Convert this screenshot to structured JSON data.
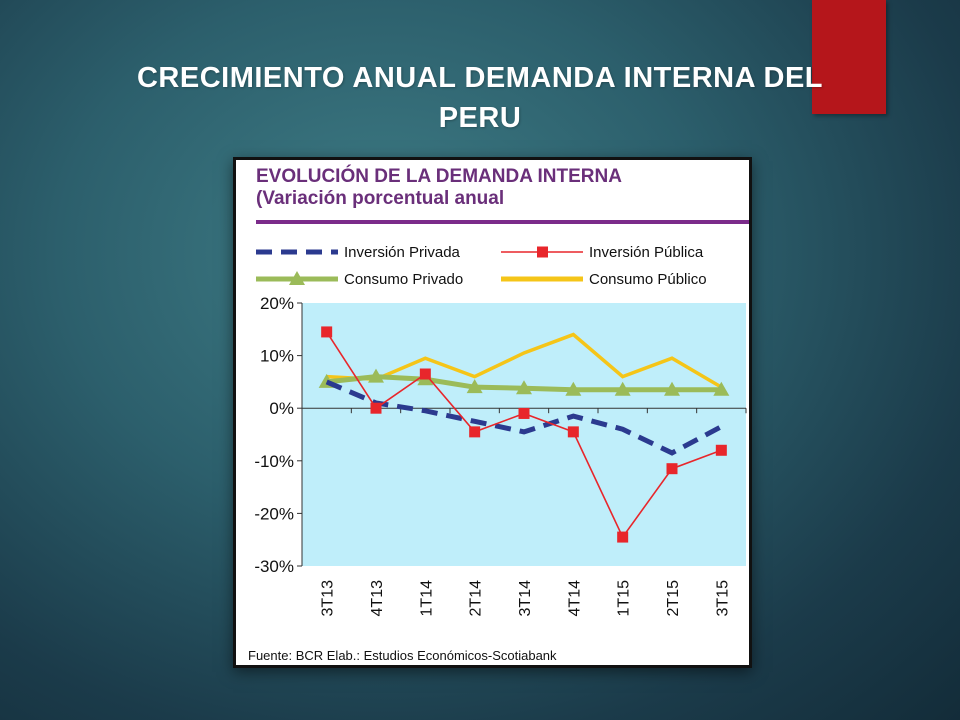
{
  "slide": {
    "title_line1": "CRECIMIENTO ANUAL DEMANDA INTERNA DEL",
    "title_line2": "PERU",
    "accent_color": "#b5161b"
  },
  "chart_data": {
    "type": "line",
    "title": "EVOLUCIÓN DE LA DEMANDA INTERNA",
    "subtitle": "(Variación porcentual anual",
    "categories": [
      "3T13",
      "4T13",
      "1T14",
      "2T14",
      "3T14",
      "4T14",
      "1T15",
      "2T15",
      "3T15"
    ],
    "ylim": [
      -30,
      20
    ],
    "yticks": [
      20,
      10,
      0,
      -10,
      -20,
      -30
    ],
    "ytick_labels": [
      "20%",
      "10%",
      "0%",
      "-10%",
      "-20%",
      "-30%"
    ],
    "grid": false,
    "legend_position": "top",
    "series": [
      {
        "name": "Inversión Privada",
        "color": "#2b3a8f",
        "style": "dashed",
        "values": [
          5,
          1,
          -0.5,
          -2.5,
          -4.5,
          -1.5,
          -4,
          -8.5,
          -3.5
        ]
      },
      {
        "name": "Inversión Pública",
        "color": "#e8262b",
        "marker": "square",
        "values": [
          14.5,
          0,
          6.5,
          -4.5,
          -1,
          -4.5,
          -24.5,
          -11.5,
          -8
        ]
      },
      {
        "name": "Consumo Privado",
        "color": "#9bbb59",
        "marker": "triangle",
        "values": [
          5,
          6,
          5.5,
          4,
          3.8,
          3.5,
          3.5,
          3.5,
          3.5
        ]
      },
      {
        "name": "Consumo Público",
        "color": "#f5c518",
        "values": [
          6,
          5.5,
          9.5,
          6,
          10.5,
          14,
          6,
          9.5,
          4
        ]
      }
    ],
    "plot_background": "#bfeefa",
    "source": "Fuente: BCR  Elab.: Estudios Económicos-Scotiabank"
  }
}
